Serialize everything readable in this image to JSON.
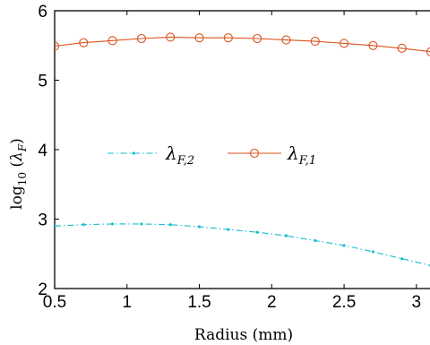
{
  "chart_data": {
    "type": "line",
    "title": "",
    "xlabel": "Radius (mm)",
    "ylabel": "log10 (λF)",
    "xlim": [
      0.5,
      3.1
    ],
    "ylim": [
      2,
      6
    ],
    "xticks": [
      "0.5",
      "1",
      "1.5",
      "2",
      "2.5",
      "3"
    ],
    "yticks": [
      "2",
      "3",
      "4",
      "5",
      "6"
    ],
    "grid": false,
    "legend_position": "center-left",
    "series": [
      {
        "name": "λF,2",
        "color": "#17becf",
        "linestyle": "dash-dot",
        "marker": "dot",
        "x": [
          0.5,
          0.7,
          0.9,
          1.1,
          1.3,
          1.5,
          1.7,
          1.9,
          2.1,
          2.3,
          2.5,
          2.7,
          2.9,
          3.1
        ],
        "values": [
          2.9,
          2.92,
          2.93,
          2.93,
          2.92,
          2.89,
          2.85,
          2.81,
          2.76,
          2.69,
          2.62,
          2.53,
          2.43,
          2.33
        ]
      },
      {
        "name": "λF,1",
        "color": "#d9531e",
        "linestyle": "solid",
        "marker": "circle",
        "x": [
          0.5,
          0.7,
          0.9,
          1.1,
          1.3,
          1.5,
          1.7,
          1.9,
          2.1,
          2.3,
          2.5,
          2.7,
          2.9,
          3.1
        ],
        "values": [
          5.49,
          5.54,
          5.57,
          5.6,
          5.62,
          5.61,
          5.61,
          5.6,
          5.58,
          5.56,
          5.53,
          5.5,
          5.46,
          5.41
        ]
      }
    ]
  }
}
